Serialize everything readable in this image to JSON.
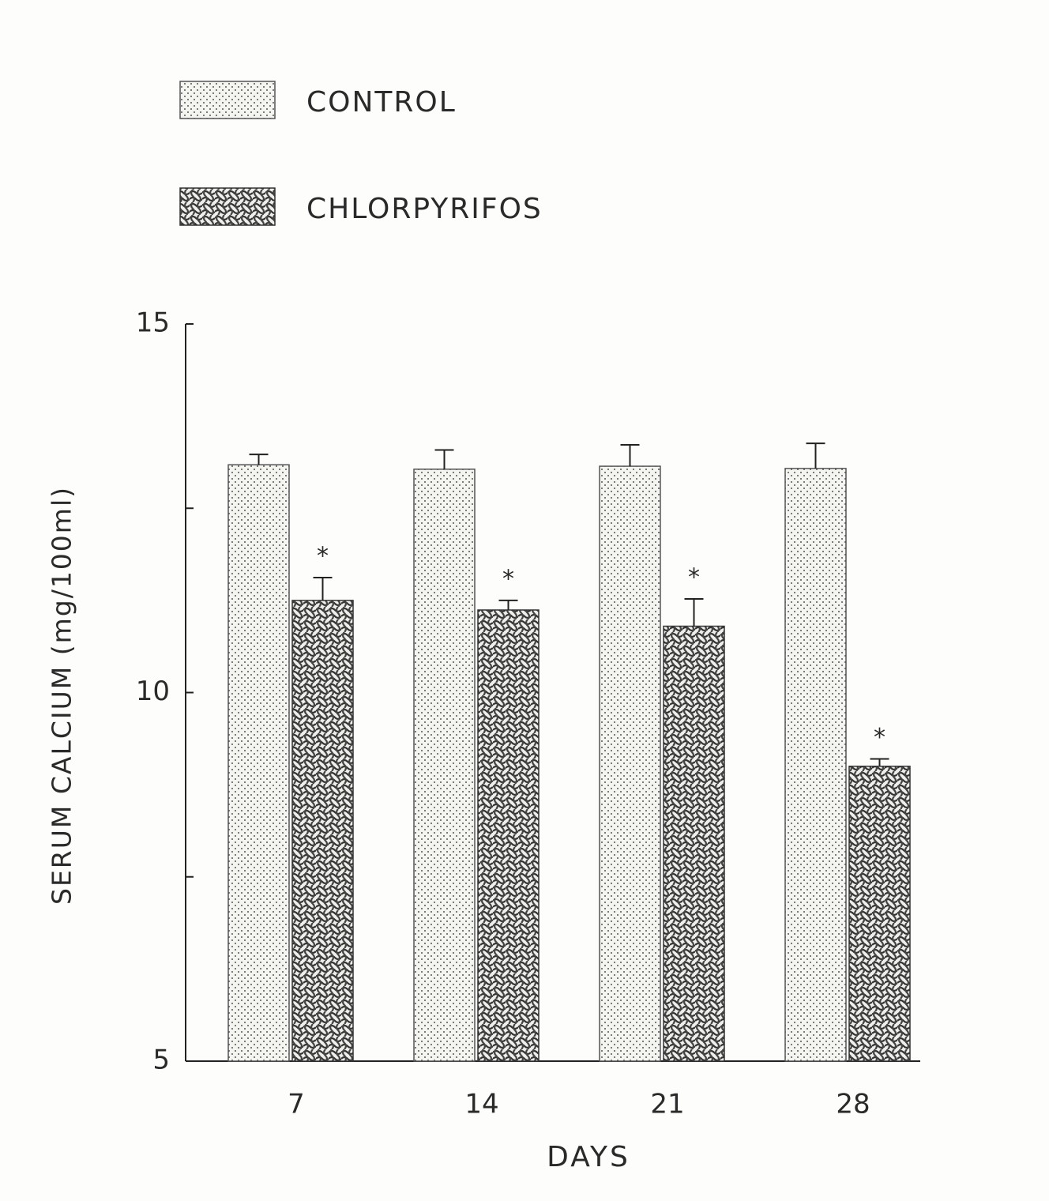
{
  "chart_data": {
    "type": "bar",
    "categories": [
      "7",
      "14",
      "21",
      "28"
    ],
    "x_label": "DAYS",
    "y_label": "SERUM CALCIUM (mg/100ml)",
    "ylim": [
      5,
      15
    ],
    "yticks": [
      5,
      10,
      15
    ],
    "minor_yticks": [
      7.5,
      12.5
    ],
    "legend": "top-left",
    "series": [
      {
        "name": "CONTROL",
        "color": "#555555",
        "pattern": "dots",
        "values": [
          13.09,
          13.03,
          13.07,
          13.04
        ],
        "errors": [
          0.14,
          0.26,
          0.29,
          0.34
        ]
      },
      {
        "name": "CHLORPYRIFOS",
        "color": "#333333",
        "pattern": "weave",
        "values": [
          11.25,
          11.12,
          10.9,
          9.0
        ],
        "errors": [
          0.31,
          0.13,
          0.37,
          0.1
        ],
        "markers": [
          "*",
          "*",
          "*",
          "*"
        ]
      }
    ]
  }
}
